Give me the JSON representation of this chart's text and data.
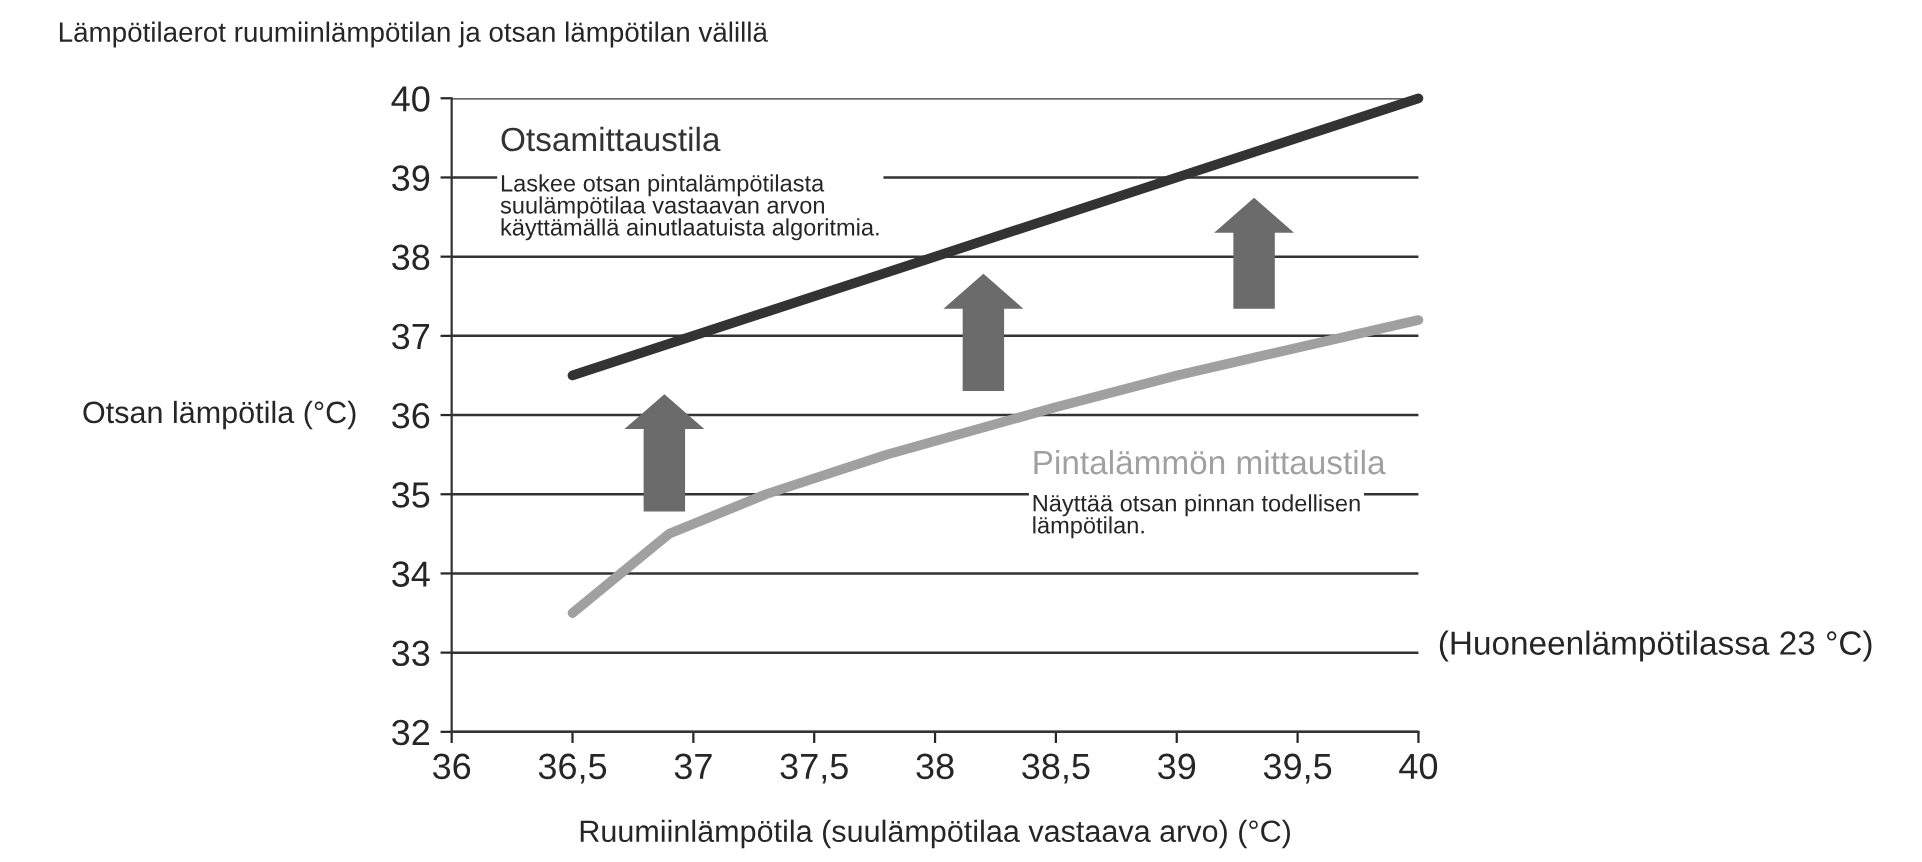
{
  "chart_data": {
    "type": "line",
    "title": "Lämpötilaerot ruumiinlämpötilan ja otsan lämpötilan välillä",
    "xlabel": "Ruumiinlämpötila (suulämpötilaa vastaava arvo) (°C)",
    "ylabel": "Otsan lämpötila (°C)",
    "series": [
      {
        "name": "Otsamittaustila",
        "color": "#333333",
        "x": [
          36.5,
          40
        ],
        "values": [
          36.5,
          40
        ]
      },
      {
        "name": "Pintalämmön mittaustila",
        "color": "#a0a0a0",
        "x": [
          36.5,
          36.9,
          37.3,
          37.8,
          38.5,
          39,
          40
        ],
        "values": [
          33.5,
          34.5,
          35.0,
          35.5,
          36.1,
          36.5,
          37.2
        ]
      }
    ],
    "annotations": [
      "Laskee otsan pintalämpötilasta\nsuulämpötilaa vastaavan arvon\nkäyttämällä ainutlaatuista algoritmia.",
      "Näyttää otsan pinnan todellisen\nlämpötilan.",
      "(Huoneenlämpötilassa 23 °C)"
    ],
    "xlim": [
      36,
      40
    ],
    "ylim": [
      32,
      40
    ],
    "xticks": [
      36,
      {
        "value": 36.5,
        "label": "36,5"
      },
      37,
      {
        "value": 37.5,
        "label": "37,5"
      },
      38,
      {
        "value": 38.5,
        "label": "38,5"
      },
      39,
      {
        "value": 39.5,
        "label": "39,5"
      },
      40
    ],
    "yticks": [
      32,
      33,
      34,
      35,
      36,
      37,
      38,
      39,
      40
    ],
    "grid": "y",
    "legend": false,
    "marker": "none",
    "line_style": "solid"
  }
}
